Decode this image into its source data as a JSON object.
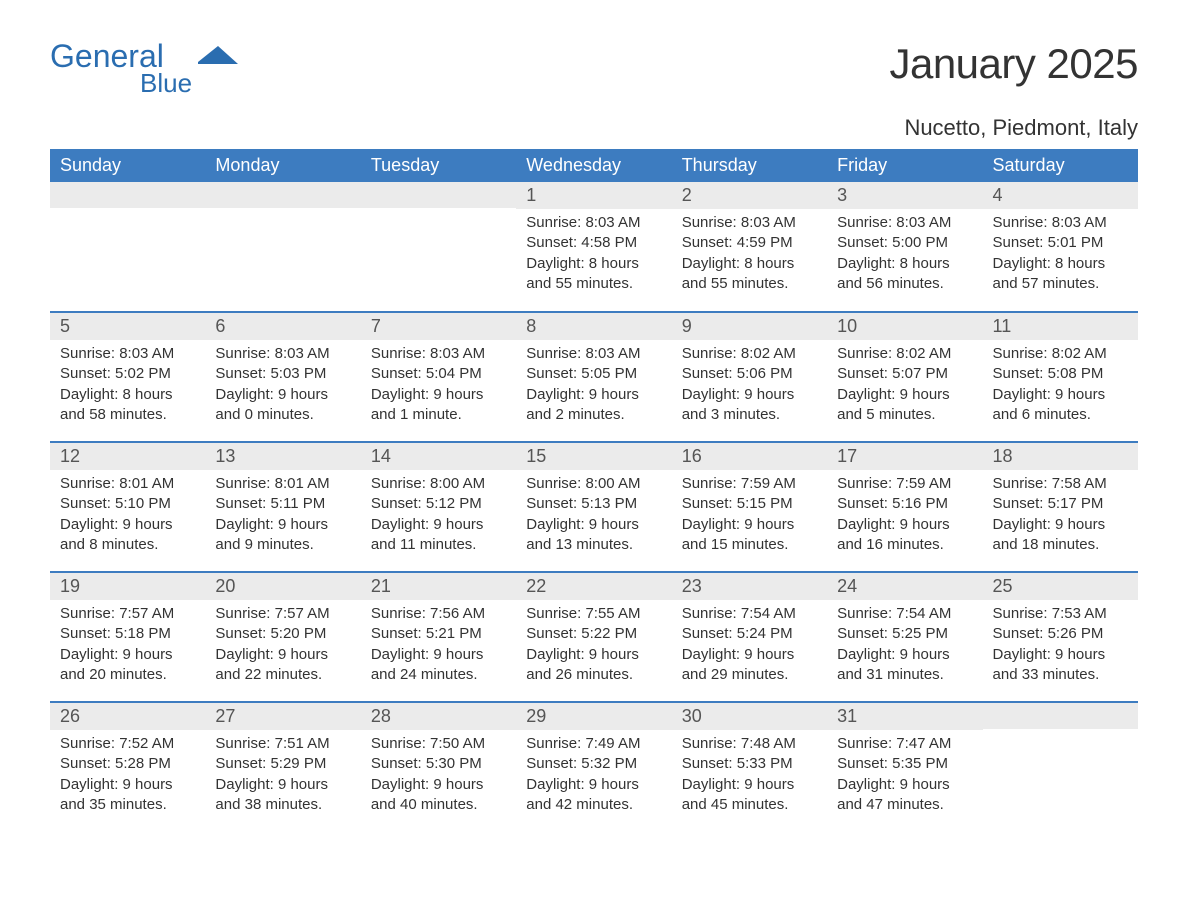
{
  "logo": {
    "text1": "General",
    "text2": "Blue",
    "accent_color": "#2a6db0"
  },
  "title": "January 2025",
  "location": "Nucetto, Piedmont, Italy",
  "header_bg": "#3d7cc0",
  "header_fg": "#ffffff",
  "daynum_bg": "#ebebeb",
  "border_color": "#3d7cc0",
  "columns": [
    "Sunday",
    "Monday",
    "Tuesday",
    "Wednesday",
    "Thursday",
    "Friday",
    "Saturday"
  ],
  "weeks": [
    [
      {
        "n": "",
        "sunrise": "",
        "sunset": "",
        "daylight": ""
      },
      {
        "n": "",
        "sunrise": "",
        "sunset": "",
        "daylight": ""
      },
      {
        "n": "",
        "sunrise": "",
        "sunset": "",
        "daylight": ""
      },
      {
        "n": "1",
        "sunrise": "Sunrise: 8:03 AM",
        "sunset": "Sunset: 4:58 PM",
        "daylight": "Daylight: 8 hours and 55 minutes."
      },
      {
        "n": "2",
        "sunrise": "Sunrise: 8:03 AM",
        "sunset": "Sunset: 4:59 PM",
        "daylight": "Daylight: 8 hours and 55 minutes."
      },
      {
        "n": "3",
        "sunrise": "Sunrise: 8:03 AM",
        "sunset": "Sunset: 5:00 PM",
        "daylight": "Daylight: 8 hours and 56 minutes."
      },
      {
        "n": "4",
        "sunrise": "Sunrise: 8:03 AM",
        "sunset": "Sunset: 5:01 PM",
        "daylight": "Daylight: 8 hours and 57 minutes."
      }
    ],
    [
      {
        "n": "5",
        "sunrise": "Sunrise: 8:03 AM",
        "sunset": "Sunset: 5:02 PM",
        "daylight": "Daylight: 8 hours and 58 minutes."
      },
      {
        "n": "6",
        "sunrise": "Sunrise: 8:03 AM",
        "sunset": "Sunset: 5:03 PM",
        "daylight": "Daylight: 9 hours and 0 minutes."
      },
      {
        "n": "7",
        "sunrise": "Sunrise: 8:03 AM",
        "sunset": "Sunset: 5:04 PM",
        "daylight": "Daylight: 9 hours and 1 minute."
      },
      {
        "n": "8",
        "sunrise": "Sunrise: 8:03 AM",
        "sunset": "Sunset: 5:05 PM",
        "daylight": "Daylight: 9 hours and 2 minutes."
      },
      {
        "n": "9",
        "sunrise": "Sunrise: 8:02 AM",
        "sunset": "Sunset: 5:06 PM",
        "daylight": "Daylight: 9 hours and 3 minutes."
      },
      {
        "n": "10",
        "sunrise": "Sunrise: 8:02 AM",
        "sunset": "Sunset: 5:07 PM",
        "daylight": "Daylight: 9 hours and 5 minutes."
      },
      {
        "n": "11",
        "sunrise": "Sunrise: 8:02 AM",
        "sunset": "Sunset: 5:08 PM",
        "daylight": "Daylight: 9 hours and 6 minutes."
      }
    ],
    [
      {
        "n": "12",
        "sunrise": "Sunrise: 8:01 AM",
        "sunset": "Sunset: 5:10 PM",
        "daylight": "Daylight: 9 hours and 8 minutes."
      },
      {
        "n": "13",
        "sunrise": "Sunrise: 8:01 AM",
        "sunset": "Sunset: 5:11 PM",
        "daylight": "Daylight: 9 hours and 9 minutes."
      },
      {
        "n": "14",
        "sunrise": "Sunrise: 8:00 AM",
        "sunset": "Sunset: 5:12 PM",
        "daylight": "Daylight: 9 hours and 11 minutes."
      },
      {
        "n": "15",
        "sunrise": "Sunrise: 8:00 AM",
        "sunset": "Sunset: 5:13 PM",
        "daylight": "Daylight: 9 hours and 13 minutes."
      },
      {
        "n": "16",
        "sunrise": "Sunrise: 7:59 AM",
        "sunset": "Sunset: 5:15 PM",
        "daylight": "Daylight: 9 hours and 15 minutes."
      },
      {
        "n": "17",
        "sunrise": "Sunrise: 7:59 AM",
        "sunset": "Sunset: 5:16 PM",
        "daylight": "Daylight: 9 hours and 16 minutes."
      },
      {
        "n": "18",
        "sunrise": "Sunrise: 7:58 AM",
        "sunset": "Sunset: 5:17 PM",
        "daylight": "Daylight: 9 hours and 18 minutes."
      }
    ],
    [
      {
        "n": "19",
        "sunrise": "Sunrise: 7:57 AM",
        "sunset": "Sunset: 5:18 PM",
        "daylight": "Daylight: 9 hours and 20 minutes."
      },
      {
        "n": "20",
        "sunrise": "Sunrise: 7:57 AM",
        "sunset": "Sunset: 5:20 PM",
        "daylight": "Daylight: 9 hours and 22 minutes."
      },
      {
        "n": "21",
        "sunrise": "Sunrise: 7:56 AM",
        "sunset": "Sunset: 5:21 PM",
        "daylight": "Daylight: 9 hours and 24 minutes."
      },
      {
        "n": "22",
        "sunrise": "Sunrise: 7:55 AM",
        "sunset": "Sunset: 5:22 PM",
        "daylight": "Daylight: 9 hours and 26 minutes."
      },
      {
        "n": "23",
        "sunrise": "Sunrise: 7:54 AM",
        "sunset": "Sunset: 5:24 PM",
        "daylight": "Daylight: 9 hours and 29 minutes."
      },
      {
        "n": "24",
        "sunrise": "Sunrise: 7:54 AM",
        "sunset": "Sunset: 5:25 PM",
        "daylight": "Daylight: 9 hours and 31 minutes."
      },
      {
        "n": "25",
        "sunrise": "Sunrise: 7:53 AM",
        "sunset": "Sunset: 5:26 PM",
        "daylight": "Daylight: 9 hours and 33 minutes."
      }
    ],
    [
      {
        "n": "26",
        "sunrise": "Sunrise: 7:52 AM",
        "sunset": "Sunset: 5:28 PM",
        "daylight": "Daylight: 9 hours and 35 minutes."
      },
      {
        "n": "27",
        "sunrise": "Sunrise: 7:51 AM",
        "sunset": "Sunset: 5:29 PM",
        "daylight": "Daylight: 9 hours and 38 minutes."
      },
      {
        "n": "28",
        "sunrise": "Sunrise: 7:50 AM",
        "sunset": "Sunset: 5:30 PM",
        "daylight": "Daylight: 9 hours and 40 minutes."
      },
      {
        "n": "29",
        "sunrise": "Sunrise: 7:49 AM",
        "sunset": "Sunset: 5:32 PM",
        "daylight": "Daylight: 9 hours and 42 minutes."
      },
      {
        "n": "30",
        "sunrise": "Sunrise: 7:48 AM",
        "sunset": "Sunset: 5:33 PM",
        "daylight": "Daylight: 9 hours and 45 minutes."
      },
      {
        "n": "31",
        "sunrise": "Sunrise: 7:47 AM",
        "sunset": "Sunset: 5:35 PM",
        "daylight": "Daylight: 9 hours and 47 minutes."
      },
      {
        "n": "",
        "sunrise": "",
        "sunset": "",
        "daylight": ""
      }
    ]
  ]
}
